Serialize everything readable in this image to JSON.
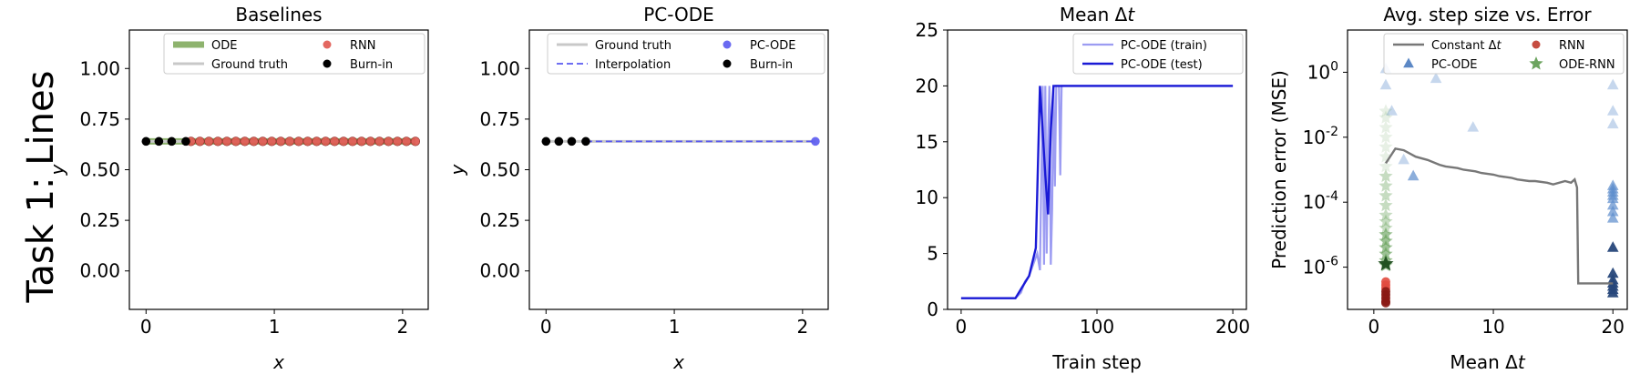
{
  "figure": {
    "row_label": "Task 1: Lines"
  },
  "chart_data": [
    {
      "type": "line",
      "title": "Baselines",
      "xlabel": "x",
      "ylabel": "y",
      "xlim": [
        -0.13,
        2.2
      ],
      "ylim": [
        -0.19,
        1.19
      ],
      "xticks": [
        0,
        1,
        2
      ],
      "yticks": [
        "0.00",
        "0.25",
        "0.50",
        "0.75",
        "1.00"
      ],
      "legend": {
        "position": "top-right",
        "columns": 2
      },
      "series": [
        {
          "name": "ODE",
          "color": "#7aa655",
          "x": [
            0,
            2.1
          ],
          "y": [
            0.64,
            0.64
          ]
        },
        {
          "name": "Ground truth",
          "color": "#c8c8c8",
          "x": [
            0,
            2.1
          ],
          "y": [
            0.64,
            0.64
          ]
        },
        {
          "name": "RNN",
          "color": "#e0574f",
          "x": [
            0.35,
            0.42,
            0.49,
            0.56,
            0.63,
            0.7,
            0.77,
            0.84,
            0.91,
            0.98,
            1.05,
            1.12,
            1.19,
            1.26,
            1.33,
            1.4,
            1.47,
            1.54,
            1.61,
            1.68,
            1.75,
            1.82,
            1.89,
            1.96,
            2.03,
            2.1
          ],
          "y": [
            0.64,
            0.64,
            0.64,
            0.64,
            0.64,
            0.64,
            0.64,
            0.64,
            0.64,
            0.64,
            0.64,
            0.64,
            0.64,
            0.64,
            0.64,
            0.64,
            0.64,
            0.64,
            0.64,
            0.64,
            0.64,
            0.64,
            0.64,
            0.64,
            0.64,
            0.64
          ]
        },
        {
          "name": "Burn-in",
          "color": "#000000",
          "x": [
            0,
            0.1,
            0.2,
            0.31
          ],
          "y": [
            0.64,
            0.64,
            0.64,
            0.64
          ]
        }
      ]
    },
    {
      "type": "line",
      "title": "PC-ODE",
      "xlabel": "x",
      "ylabel": "y",
      "xlim": [
        -0.13,
        2.2
      ],
      "ylim": [
        -0.19,
        1.19
      ],
      "xticks": [
        0,
        1,
        2
      ],
      "yticks": [
        "0.00",
        "0.25",
        "0.50",
        "0.75",
        "1.00"
      ],
      "legend": {
        "position": "top-right",
        "columns": 2
      },
      "series": [
        {
          "name": "Ground truth",
          "color": "#c8c8c8",
          "x": [
            0,
            2.1
          ],
          "y": [
            0.64,
            0.64
          ]
        },
        {
          "name": "Interpolation",
          "color": "#5a5af0",
          "x": [
            0.31,
            2.1
          ],
          "y": [
            0.64,
            0.64
          ]
        },
        {
          "name": "PC-ODE",
          "color": "#5a5af0",
          "x": [
            2.1
          ],
          "y": [
            0.64
          ]
        },
        {
          "name": "Burn-in",
          "color": "#000000",
          "x": [
            0,
            0.1,
            0.2,
            0.31
          ],
          "y": [
            0.64,
            0.64,
            0.64,
            0.64
          ]
        }
      ]
    },
    {
      "type": "line",
      "title": "Mean Δt",
      "xlabel": "Train step",
      "ylabel": "",
      "xlim": [
        -10,
        210
      ],
      "ylim": [
        0,
        25
      ],
      "xticks": [
        0,
        100,
        200
      ],
      "yticks": [
        "0",
        "5",
        "10",
        "15",
        "20",
        "25"
      ],
      "legend": {
        "position": "top-right",
        "columns": 1
      },
      "series": [
        {
          "name": "PC-ODE (train)",
          "color": "#9c9cf2",
          "x": [
            0,
            40,
            44,
            47,
            50,
            53,
            56,
            58,
            60,
            61,
            62,
            63,
            64,
            65,
            66,
            67,
            68,
            69,
            70,
            71,
            72,
            73,
            74,
            75,
            200
          ],
          "y": [
            1,
            1,
            1.5,
            2.5,
            3,
            4,
            5,
            3.5,
            20,
            4,
            20,
            5,
            15,
            20,
            4,
            9,
            20,
            11,
            20,
            20,
            20,
            12,
            20,
            20,
            20
          ]
        },
        {
          "name": "PC-ODE (test)",
          "color": "#1a1ad6",
          "x": [
            0,
            40,
            45,
            50,
            55,
            58,
            62,
            64,
            66,
            68,
            70,
            72,
            200
          ],
          "y": [
            1,
            1,
            2,
            3,
            5.5,
            20,
            12,
            8.5,
            16,
            20,
            20,
            20,
            20
          ]
        }
      ]
    },
    {
      "type": "scatter",
      "title": "Avg. step size vs. Error",
      "xlabel": "Mean Δt",
      "ylabel": "Prediction error (MSE)",
      "xlim": [
        -2.2,
        21.2
      ],
      "ylim_log10": [
        -7.3,
        1.3
      ],
      "xticks": [
        0,
        10,
        20
      ],
      "yticks": [
        "10^0",
        "10^-2",
        "10^-4",
        "10^-6"
      ],
      "legend": {
        "position": "top-right",
        "columns": 2
      },
      "series": [
        {
          "name": "Constant Δt",
          "type": "line",
          "color": "#777777",
          "x": [
            1,
            1.8,
            2.5,
            3.5,
            4.5,
            5.5,
            6,
            7,
            7.5,
            8.5,
            9,
            10,
            10.5,
            11.5,
            12,
            13,
            13.5,
            14.5,
            15,
            16,
            16.5,
            16.8,
            17,
            17.1,
            18.5,
            20
          ],
          "y_log10": [
            -2.8,
            -2.35,
            -2.4,
            -2.6,
            -2.7,
            -2.85,
            -2.9,
            -2.95,
            -3.0,
            -3.05,
            -3.1,
            -3.15,
            -3.2,
            -3.25,
            -3.3,
            -3.35,
            -3.35,
            -3.4,
            -3.45,
            -3.35,
            -3.4,
            -3.3,
            -3.55,
            -6.5,
            -6.5,
            -6.5
          ]
        },
        {
          "name": "RNN",
          "type": "scatter",
          "color": "#c0392b",
          "x": [
            1,
            1,
            1,
            1,
            1,
            1,
            1,
            1
          ],
          "y_log10": [
            -6.45,
            -6.55,
            -6.65,
            -6.75,
            -6.85,
            -6.95,
            -7.05,
            -7.1
          ]
        },
        {
          "name": "PC-ODE",
          "type": "scatter",
          "color": "#4a7bbf",
          "x": [
            1,
            1,
            1.5,
            2.5,
            3.3,
            5.2,
            8.3,
            20,
            20,
            20,
            20,
            20,
            20,
            20,
            20,
            20,
            20,
            20,
            20,
            20,
            20,
            20,
            20,
            20,
            20
          ],
          "y_log10": [
            0.1,
            -0.4,
            -1.2,
            -2.7,
            -3.2,
            -0.2,
            -1.7,
            -0.4,
            -1.2,
            -1.6,
            -3.5,
            -3.6,
            -3.7,
            -3.8,
            -3.9,
            -4.1,
            -4.3,
            -4.5,
            -5.4,
            -6.2,
            -6.4,
            -6.5,
            -6.6,
            -6.7,
            -6.8
          ]
        },
        {
          "name": "ODE-RNN",
          "type": "scatter",
          "color": "#5c9a4e",
          "x": [
            1,
            1,
            1,
            1,
            1,
            1,
            1,
            1,
            1,
            1,
            1,
            1,
            1,
            1,
            1,
            1,
            1,
            1,
            1,
            1
          ],
          "y_log10": [
            -1.2,
            -1.4,
            -1.7,
            -2.0,
            -2.3,
            -2.6,
            -2.9,
            -3.2,
            -3.5,
            -3.8,
            -4.1,
            -4.4,
            -4.6,
            -4.8,
            -5.0,
            -5.2,
            -5.4,
            -5.6,
            -5.8,
            -5.95
          ]
        }
      ]
    }
  ]
}
